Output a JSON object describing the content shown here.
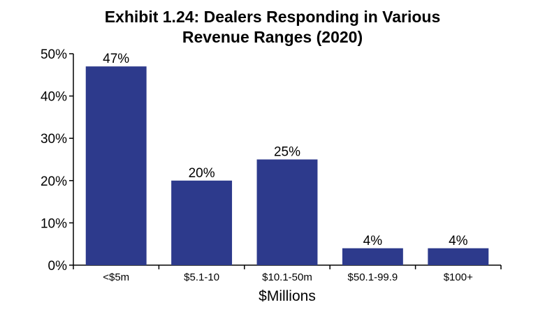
{
  "chart_data": {
    "type": "bar",
    "title_lines": [
      "Exhibit 1.24: Dealers Responding in Various",
      "Revenue Ranges (2020)"
    ],
    "categories": [
      "<$5m",
      "$5.1-10",
      "$10.1-50m",
      "$50.1-99.9",
      "$100+"
    ],
    "values": [
      47,
      20,
      25,
      4,
      4
    ],
    "data_labels": [
      "47%",
      "20%",
      "25%",
      "4%",
      "4%"
    ],
    "xlabel": "$Millions",
    "ylabel": "",
    "ylim": [
      0,
      50
    ],
    "yticks": [
      0,
      10,
      20,
      30,
      40,
      50
    ],
    "ytick_labels": [
      "0%",
      "10%",
      "20%",
      "30%",
      "40%",
      "50%"
    ],
    "grid": false,
    "bar_color": "#2d3a8c"
  }
}
